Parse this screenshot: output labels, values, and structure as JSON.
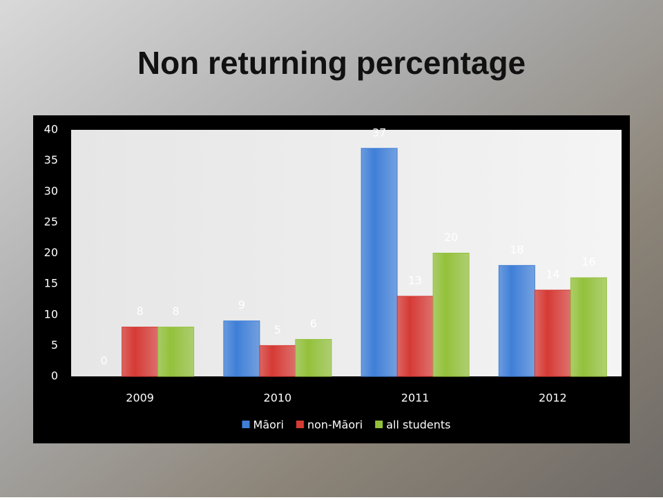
{
  "chart_data": {
    "type": "bar",
    "title": "Non returning percentage",
    "categories": [
      "2009",
      "2010",
      "2011",
      "2012"
    ],
    "series": [
      {
        "name": "Māori",
        "color": "#3f7fd8",
        "values": [
          0,
          9,
          37,
          18
        ]
      },
      {
        "name": "non-Māori",
        "color": "#d63a35",
        "values": [
          8,
          5,
          13,
          14
        ]
      },
      {
        "name": "all students",
        "color": "#93c13b",
        "values": [
          8,
          6,
          20,
          16
        ]
      }
    ],
    "ylim": [
      0,
      40
    ],
    "yticks": [
      0,
      5,
      10,
      15,
      20,
      25,
      30,
      35,
      40
    ],
    "grid": false,
    "legend": "bottom"
  }
}
